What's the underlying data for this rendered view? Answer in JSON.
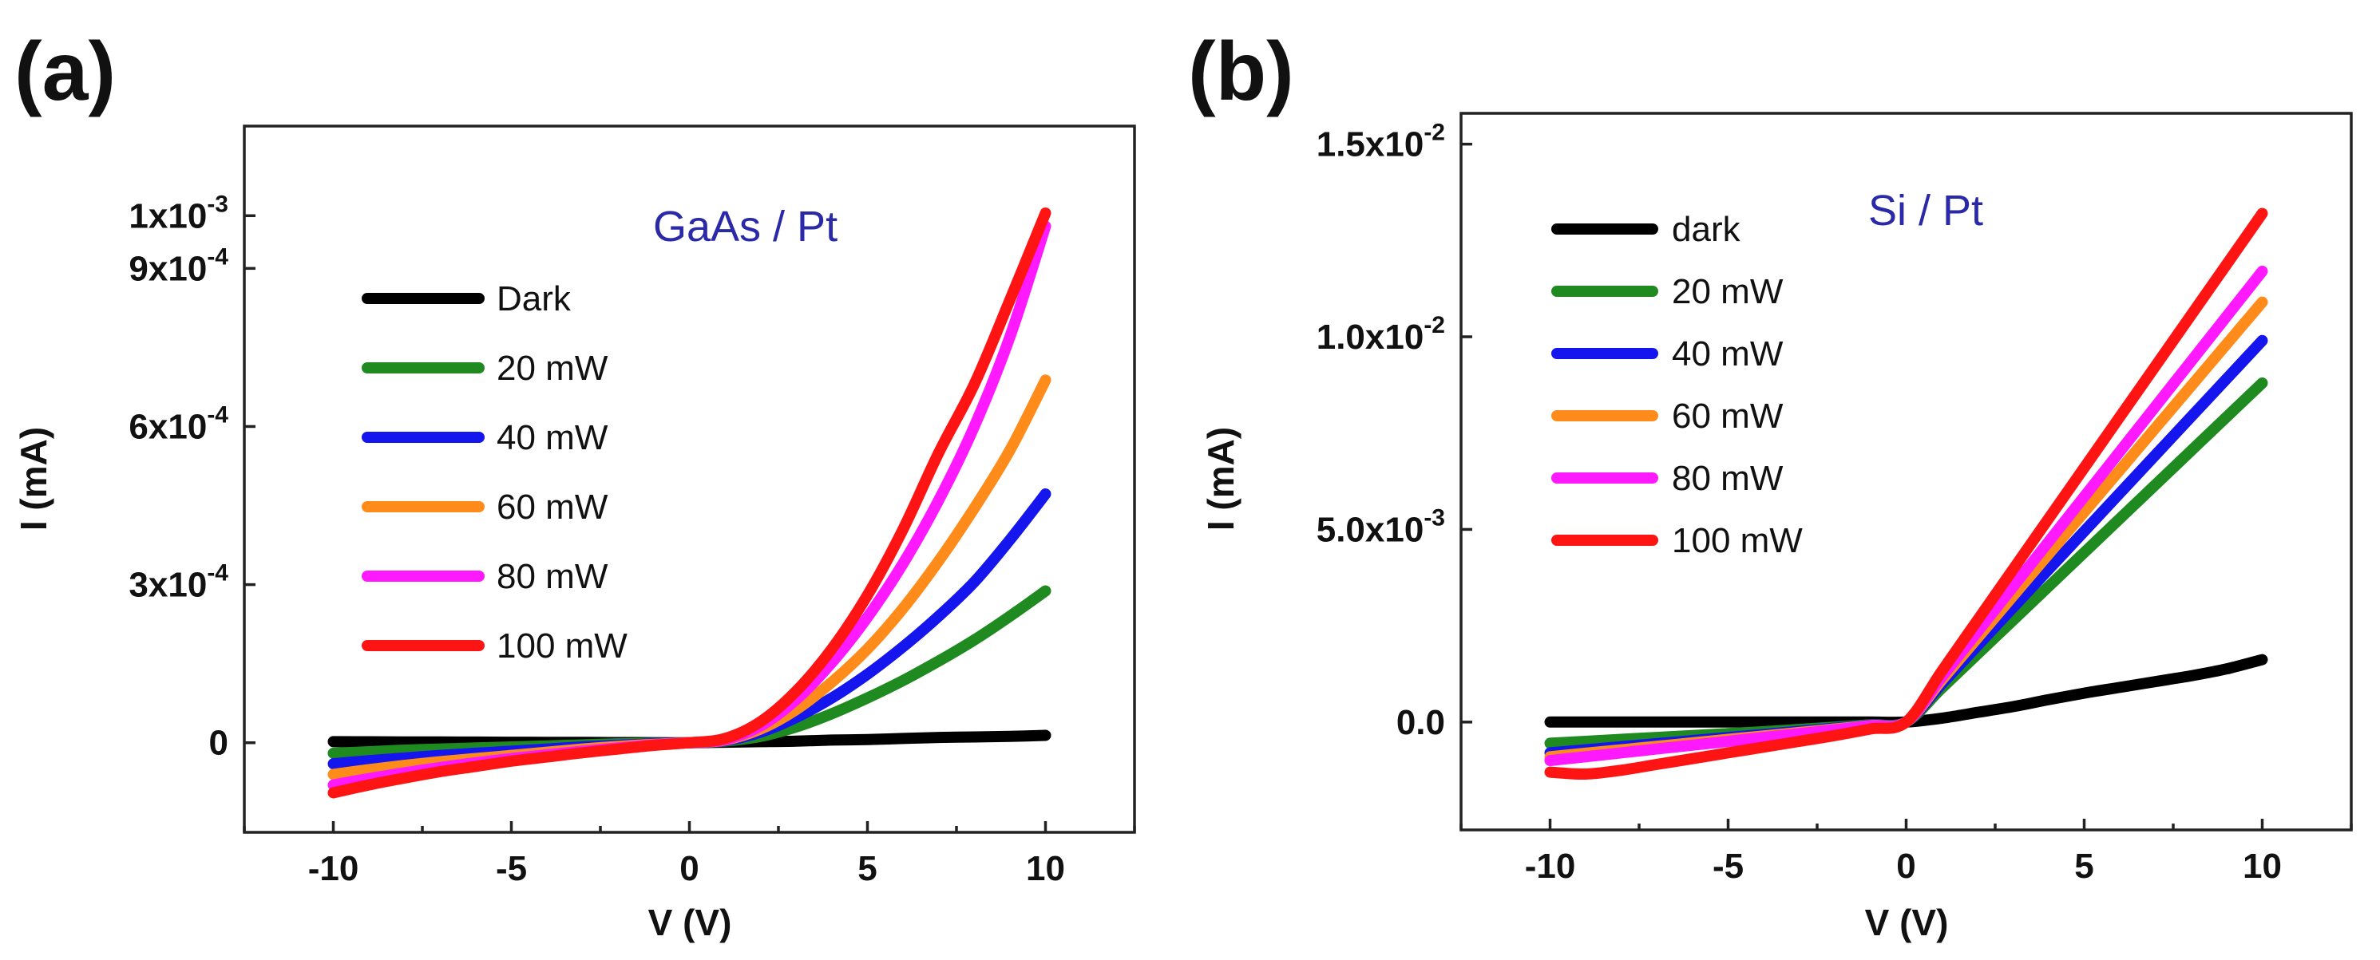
{
  "chart_data": [
    {
      "type": "line",
      "panel_label": "(a)",
      "title": "",
      "annotation": "GaAs / Pt",
      "xlabel": "V (V)",
      "ylabel": "I (mA)",
      "xlim": [
        -12.5,
        12.5
      ],
      "ylim": [
        -0.00017,
        0.00117
      ],
      "xticks": [
        -10,
        -5,
        0,
        5,
        10
      ],
      "xtick_labels": [
        "-10",
        "-5",
        "0",
        "5",
        "10"
      ],
      "yticks": [
        0,
        0.0003,
        0.0006,
        0.0009,
        0.001
      ],
      "ytick_labels": [
        {
          "base": "0",
          "exp": ""
        },
        {
          "base": "3x10",
          "exp": "-4"
        },
        {
          "base": "6x10",
          "exp": "-4"
        },
        {
          "base": "9x10",
          "exp": "-4"
        },
        {
          "base": "1x10",
          "exp": "-3"
        }
      ],
      "legend_position": "upper-left",
      "x": [
        -10,
        -9,
        -8,
        -7,
        -6,
        -5,
        -4,
        -3,
        -2,
        -1,
        0,
        1,
        2,
        3,
        4,
        5,
        6,
        7,
        8,
        9,
        10
      ],
      "series": [
        {
          "name": "Dark",
          "color": "#000000",
          "values": [
            2e-06,
            1.8e-06,
            1.6e-06,
            1.4e-06,
            1.2e-06,
            1e-06,
            8e-07,
            6e-07,
            4e-07,
            2e-07,
            0,
            1e-06,
            2e-06,
            3e-06,
            5e-06,
            6e-06,
            8e-06,
            1e-05,
            1.1e-05,
            1.2e-05,
            1.4e-05
          ]
        },
        {
          "name": "20 mW",
          "color": "#1f8a1f",
          "values": [
            -2e-05,
            -1.7e-05,
            -1.4e-05,
            -1.2e-05,
            -1e-05,
            -8e-06,
            -6e-06,
            -4e-06,
            -2e-06,
            -1e-06,
            0,
            3e-06,
            1.2e-05,
            3e-05,
            5.5e-05,
            8.5e-05,
            0.000118,
            0.000155,
            0.000195,
            0.00024,
            0.000288
          ]
        },
        {
          "name": "40 mW",
          "color": "#1515ee",
          "values": [
            -4e-05,
            -3.4e-05,
            -2.9e-05,
            -2.4e-05,
            -2e-05,
            -1.6e-05,
            -1.2e-05,
            -8e-06,
            -5e-06,
            -2e-06,
            0,
            4e-06,
            2e-05,
            4.8e-05,
            8.5e-05,
            0.00013,
            0.000182,
            0.00024,
            0.000305,
            0.000385,
            0.000472
          ]
        },
        {
          "name": "60 mW",
          "color": "#ff8c1a",
          "values": [
            -6e-05,
            -5.1e-05,
            -4.3e-05,
            -3.6e-05,
            -3e-05,
            -2.4e-05,
            -1.8e-05,
            -1.2e-05,
            -7e-06,
            -3e-06,
            0,
            5e-06,
            2.6e-05,
            6.3e-05,
            0.000115,
            0.000178,
            0.000255,
            0.000345,
            0.000445,
            0.000555,
            0.000688
          ]
        },
        {
          "name": "80 mW",
          "color": "#ff19ff",
          "values": [
            -8e-05,
            -6.8e-05,
            -5.7e-05,
            -4.7e-05,
            -3.8e-05,
            -3e-05,
            -2.3e-05,
            -1.6e-05,
            -1e-05,
            -4e-06,
            0,
            6e-06,
            3.2e-05,
            8.2e-05,
            0.000152,
            0.000238,
            0.00034,
            0.00046,
            0.0006,
            0.00077,
            0.00098
          ]
        },
        {
          "name": "100 mW",
          "color": "#ff1414",
          "values": [
            -9.5e-05,
            -8e-05,
            -6.7e-05,
            -5.5e-05,
            -4.5e-05,
            -3.5e-05,
            -2.7e-05,
            -1.9e-05,
            -1.2e-05,
            -5e-06,
            0,
            8e-06,
            4e-05,
            9.8e-05,
            0.000178,
            0.00028,
            0.000405,
            0.00055,
            0.00068,
            0.00084,
            0.001005
          ]
        }
      ]
    },
    {
      "type": "line",
      "panel_label": "(b)",
      "title": "",
      "annotation": "Si / Pt",
      "xlabel": "V (V)",
      "ylabel": "I (mA)",
      "xlim": [
        -12.5,
        12.5
      ],
      "ylim": [
        -0.0028,
        0.0158
      ],
      "xticks": [
        -10,
        -5,
        0,
        5,
        10
      ],
      "xtick_labels": [
        "-10",
        "-5",
        "0",
        "5",
        "10"
      ],
      "yticks": [
        0,
        0.005,
        0.01,
        0.015
      ],
      "ytick_labels": [
        {
          "base": "0.0",
          "exp": ""
        },
        {
          "base": "5.0x10",
          "exp": "-3"
        },
        {
          "base": "1.0x10",
          "exp": "-2"
        },
        {
          "base": "1.5x10",
          "exp": "-2"
        }
      ],
      "legend_position": "upper-left",
      "x": [
        -10,
        -9,
        -8,
        -7,
        -6,
        -5,
        -4,
        -3,
        -2,
        -1,
        0,
        1,
        2,
        3,
        4,
        5,
        6,
        7,
        8,
        9,
        10
      ],
      "series": [
        {
          "name": "dark",
          "color": "#000000",
          "values": [
            0,
            0,
            0,
            0,
            0,
            0,
            0,
            0,
            0,
            0,
            0,
            0.0001,
            0.00025,
            0.0004,
            0.00058,
            0.00075,
            0.0009,
            0.00105,
            0.0012,
            0.00138,
            0.00162
          ]
        },
        {
          "name": "20 mW",
          "color": "#1f8a1f",
          "values": [
            -0.00055,
            -0.0005,
            -0.00045,
            -0.0004,
            -0.00035,
            -0.0003,
            -0.00025,
            -0.00019,
            -0.00013,
            -7e-05,
            0,
            0.00088,
            0.00176,
            0.00264,
            0.00352,
            0.0044,
            0.00528,
            0.00616,
            0.00704,
            0.00792,
            0.0088
          ]
        },
        {
          "name": "40 mW",
          "color": "#1515ee",
          "values": [
            -0.0008,
            -0.00072,
            -0.00064,
            -0.00056,
            -0.00048,
            -0.0004,
            -0.00032,
            -0.00024,
            -0.00016,
            -8e-05,
            0,
            0.00099,
            0.00198,
            0.00297,
            0.00396,
            0.00495,
            0.00594,
            0.00693,
            0.00792,
            0.00891,
            0.0099
          ]
        },
        {
          "name": "60 mW",
          "color": "#ff8c1a",
          "values": [
            -0.0009,
            -0.00081,
            -0.00072,
            -0.00063,
            -0.00054,
            -0.00045,
            -0.00036,
            -0.00027,
            -0.00018,
            -9e-05,
            0,
            0.00109,
            0.00218,
            0.00327,
            0.00436,
            0.00545,
            0.00654,
            0.00763,
            0.00872,
            0.00981,
            0.0109
          ]
        },
        {
          "name": "80 mW",
          "color": "#ff19ff",
          "values": [
            -0.001,
            -0.0009,
            -0.0008,
            -0.0007,
            -0.0006,
            -0.0005,
            -0.0004,
            -0.0003,
            -0.0002,
            -0.0001,
            0,
            0.00117,
            0.00234,
            0.00351,
            0.00468,
            0.00585,
            0.00702,
            0.00819,
            0.00936,
            0.01053,
            0.0117
          ]
        },
        {
          "name": "100 mW",
          "color": "#ff1414",
          "values": [
            -0.0013,
            -0.00135,
            -0.00125,
            -0.0011,
            -0.00095,
            -0.0008,
            -0.00065,
            -0.0005,
            -0.00035,
            -0.00018,
            0,
            0.00132,
            0.00264,
            0.00396,
            0.00528,
            0.0066,
            0.00792,
            0.00924,
            0.01056,
            0.01188,
            0.0132
          ]
        }
      ]
    }
  ]
}
